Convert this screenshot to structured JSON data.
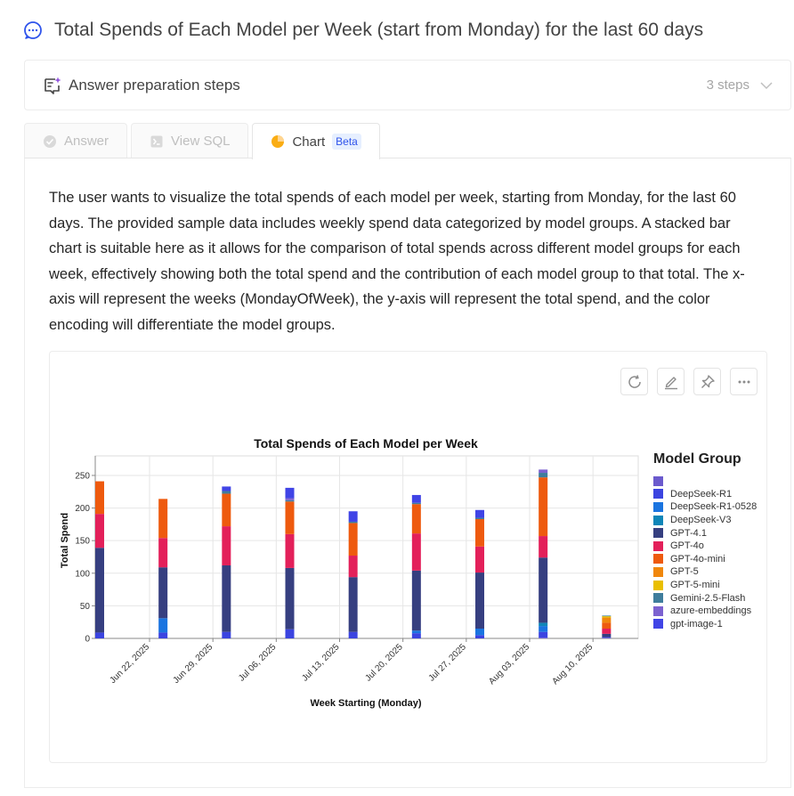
{
  "header": {
    "title": "Total Spends of Each Model per Week (start from Monday) for the last 60 days"
  },
  "steps": {
    "label": "Answer preparation steps",
    "count": "3 steps"
  },
  "tabs": [
    {
      "label": "Answer"
    },
    {
      "label": "View SQL"
    },
    {
      "label": "Chart",
      "badge": "Beta"
    }
  ],
  "description": "The user wants to visualize the total spends of each model per week, starting from Monday, for the last 60 days. The provided sample data includes weekly spend data categorized by model groups. A stacked bar chart is suitable here as it allows for the comparison of total spends across different model groups for each week, effectively showing both the total spend and the contribution of each model group to that total. The x-axis will represent the weeks (MondayOfWeek), the y-axis will represent the total spend, and the color encoding will differentiate the model groups.",
  "icons": {
    "title": "chat-bubble-icon",
    "steps": "sparkle-list-icon",
    "answer_tab": "check-circle-icon",
    "sql_tab": "terminal-icon",
    "chart_tab": "pie-chart-icon",
    "tools": [
      "reload-icon",
      "edit-icon",
      "pin-icon",
      "more-icon"
    ]
  },
  "chart_data": {
    "type": "bar",
    "stacked": true,
    "title": "Total Spends of Each Model per Week",
    "xlabel": "Week Starting (Monday)",
    "ylabel": "Total Spend",
    "ylim": [
      0,
      280
    ],
    "yticks": [
      0,
      50,
      100,
      150,
      200,
      250
    ],
    "xdomain": [
      "2025-06-16",
      "2025-08-15"
    ],
    "xticks": [
      "Jun 22, 2025",
      "Jun 29, 2025",
      "Jul 06, 2025",
      "Jul 13, 2025",
      "Jul 20, 2025",
      "Jul 27, 2025",
      "Aug 03, 2025",
      "Aug 10, 2025"
    ],
    "xtick_dates": [
      "2025-06-22",
      "2025-06-29",
      "2025-07-06",
      "2025-07-13",
      "2025-07-20",
      "2025-07-27",
      "2025-08-03",
      "2025-08-10"
    ],
    "grid": true,
    "legend_title": "Model Group",
    "legend_position": "right",
    "weeks": [
      "2025-06-16",
      "2025-06-23",
      "2025-06-30",
      "2025-07-07",
      "2025-07-14",
      "2025-07-21",
      "2025-07-28",
      "2025-08-04",
      "2025-08-11"
    ],
    "series": [
      {
        "name": "",
        "color": "#6b5acd",
        "values": [
          0,
          0,
          0,
          0,
          0,
          0,
          0,
          1,
          1
        ]
      },
      {
        "name": "DeepSeek-R1",
        "color": "#3b44e0",
        "values": [
          9,
          9,
          10,
          14,
          10,
          8,
          5,
          9,
          1
        ]
      },
      {
        "name": "DeepSeek-R1-0528",
        "color": "#1a74e0",
        "values": [
          0,
          22,
          0,
          0,
          0,
          4,
          10,
          9,
          0
        ]
      },
      {
        "name": "DeepSeek-V3",
        "color": "#0f86b8",
        "values": [
          0,
          0,
          0,
          0,
          0,
          0,
          0,
          5,
          0
        ]
      },
      {
        "name": "GPT-4.1",
        "color": "#363f80",
        "values": [
          130,
          78,
          102,
          94,
          84,
          92,
          86,
          100,
          5
        ]
      },
      {
        "name": "GPT-4o",
        "color": "#e3205a",
        "values": [
          52,
          45,
          60,
          52,
          33,
          57,
          40,
          33,
          8
        ]
      },
      {
        "name": "GPT-4o-mini",
        "color": "#ee5a0e",
        "values": [
          50,
          60,
          50,
          50,
          50,
          45,
          42,
          90,
          9
        ]
      },
      {
        "name": "GPT-5",
        "color": "#f0870c",
        "values": [
          0,
          0,
          0,
          0,
          0,
          0,
          0,
          0,
          8
        ]
      },
      {
        "name": "GPT-5-mini",
        "color": "#e9bf00",
        "values": [
          0,
          0,
          0,
          0,
          0,
          0,
          0,
          0,
          2
        ]
      },
      {
        "name": "Gemini-2.5-Flash",
        "color": "#3f7d9c",
        "values": [
          0,
          0,
          4,
          2,
          2,
          2,
          2,
          7,
          1
        ]
      },
      {
        "name": "azure-embeddings",
        "color": "#7c62d0",
        "values": [
          0,
          0,
          0,
          3,
          0,
          0,
          0,
          5,
          0
        ]
      },
      {
        "name": "gpt-image-1",
        "color": "#4044e6",
        "values": [
          0,
          0,
          7,
          16,
          16,
          12,
          12,
          0,
          0
        ]
      }
    ]
  }
}
